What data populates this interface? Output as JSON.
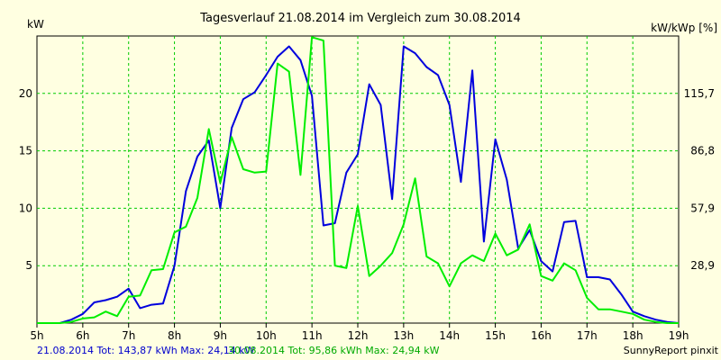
{
  "chart_data": {
    "type": "line",
    "title": "Tagesverlauf 21.08.2014 im Vergleich zum 30.08.2014",
    "ylabel": "kW",
    "y2label": "kW/kWp [%]",
    "x_tick_labels": [
      "5h",
      "6h",
      "7h",
      "8h",
      "9h",
      "10h",
      "11h",
      "12h",
      "13h",
      "14h",
      "15h",
      "16h",
      "17h",
      "18h",
      "19h"
    ],
    "y_ticks": [
      5,
      10,
      15,
      20
    ],
    "y2_tick_labels": [
      "28,9",
      "57,9",
      "86,8",
      "115,7"
    ],
    "xlim": [
      5,
      19
    ],
    "ylim": [
      0,
      25
    ],
    "grid": true,
    "series": [
      {
        "name": "21.08.2014",
        "color": "#0000dd",
        "x": [
          5,
          5.5,
          5.75,
          6,
          6.25,
          6.5,
          6.75,
          7,
          7.25,
          7.5,
          7.75,
          8,
          8.25,
          8.5,
          8.75,
          9,
          9.25,
          9.5,
          9.75,
          10,
          10.25,
          10.5,
          10.75,
          11,
          11.25,
          11.5,
          11.75,
          12,
          12.25,
          12.5,
          12.75,
          13,
          13.25,
          13.5,
          13.75,
          14,
          14.25,
          14.5,
          14.75,
          15,
          15.25,
          15.5,
          15.75,
          16,
          16.25,
          16.5,
          16.75,
          17,
          17.25,
          17.5,
          17.75,
          18,
          18.25,
          18.5,
          18.75,
          19
        ],
        "values": [
          0,
          0,
          0.3,
          0.8,
          1.8,
          2.0,
          2.3,
          3.0,
          1.3,
          1.6,
          1.7,
          5.0,
          11.5,
          14.5,
          15.9,
          10.0,
          17.0,
          19.5,
          20.1,
          21.6,
          23.2,
          24.1,
          22.9,
          19.8,
          8.5,
          8.7,
          13.1,
          14.7,
          20.8,
          19.0,
          10.8,
          24.1,
          23.5,
          22.3,
          21.6,
          19.0,
          12.3,
          22.0,
          7.1,
          16.0,
          12.5,
          6.5,
          8.1,
          5.4,
          4.5,
          8.8,
          8.9,
          4.0,
          4.0,
          3.8,
          2.5,
          1.0,
          0.6,
          0.3,
          0.1,
          0
        ]
      },
      {
        "name": "30.08.2014",
        "color": "#00ee00",
        "x": [
          5,
          5.5,
          5.75,
          6,
          6.25,
          6.5,
          6.75,
          7,
          7.25,
          7.5,
          7.75,
          8,
          8.25,
          8.5,
          8.75,
          9,
          9.25,
          9.5,
          9.75,
          10,
          10.25,
          10.5,
          10.75,
          11,
          11.25,
          11.5,
          11.75,
          12,
          12.25,
          12.5,
          12.75,
          13,
          13.25,
          13.5,
          13.75,
          14,
          14.25,
          14.5,
          14.75,
          15,
          15.25,
          15.5,
          15.75,
          16,
          16.25,
          16.5,
          16.75,
          17,
          17.25,
          17.5,
          17.75,
          18,
          18.25,
          18.5,
          18.75,
          19
        ],
        "values": [
          0,
          0,
          0.1,
          0.4,
          0.5,
          1.0,
          0.6,
          2.3,
          2.4,
          4.6,
          4.7,
          7.9,
          8.4,
          10.9,
          16.9,
          12.2,
          16.2,
          13.4,
          13.1,
          13.2,
          22.6,
          21.9,
          12.9,
          24.9,
          24.6,
          5.0,
          4.8,
          10.2,
          4.1,
          5.0,
          6.1,
          8.6,
          12.6,
          5.8,
          5.2,
          3.2,
          5.2,
          5.9,
          5.4,
          7.8,
          5.9,
          6.4,
          8.6,
          4.1,
          3.7,
          5.2,
          4.6,
          2.2,
          1.2,
          1.2,
          1.0,
          0.8,
          0.3,
          0.1,
          0,
          0
        ]
      }
    ]
  },
  "footer": {
    "series1_text": "21.08.2014 Tot: 143,87 kWh Max: 24,14 kW",
    "series2_text": "30.08.2014 Tot: 95,86 kWh Max: 24,94 kW",
    "brand": "SunnyReport pinxit"
  }
}
